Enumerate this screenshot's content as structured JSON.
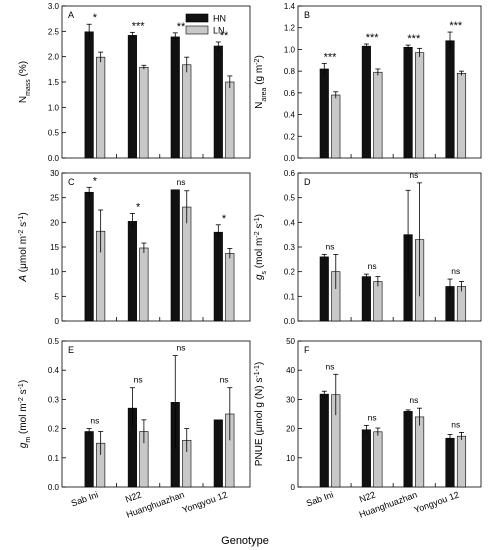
{
  "figure": {
    "xlabel": "Genotype",
    "categories": [
      "Sab Ini",
      "N22",
      "Huanghuazhan",
      "Yongyou 12"
    ],
    "legend": {
      "placement": "top-right",
      "series": [
        "HN",
        "LN"
      ]
    },
    "colors": {
      "HN": "#111111",
      "LN": "#c8c8c8",
      "axis": "#000000"
    }
  },
  "chart_data": [
    {
      "type": "bar",
      "panel": "A",
      "ylabel": "N",
      "ylabel_sub": "mass",
      "ylabel_rest": " (%)",
      "ylim": [
        0,
        3.0
      ],
      "yticks": [
        "0.0",
        "0.5",
        "1.0",
        "1.5",
        "2.0",
        "2.5",
        "3.0"
      ],
      "categories": [
        "Sab Ini",
        "N22",
        "Huanghuazhan",
        "Yongyou 12"
      ],
      "series": [
        {
          "name": "HN",
          "values": [
            2.49,
            2.42,
            2.39,
            2.21
          ],
          "errors": [
            0.15,
            0.06,
            0.08,
            0.08
          ]
        },
        {
          "name": "LN",
          "values": [
            1.99,
            1.79,
            1.84,
            1.5
          ],
          "errors": [
            0.1,
            0.04,
            0.15,
            0.12
          ]
        }
      ],
      "significance": [
        "*",
        "***",
        "**",
        "**"
      ],
      "legend": true
    },
    {
      "type": "bar",
      "panel": "B",
      "ylabel": "N",
      "ylabel_sub": "area",
      "ylabel_rest": " (g m",
      "ylabel_sup": "-2",
      "ylabel_end": ")",
      "ylim": [
        0,
        1.4
      ],
      "yticks": [
        "0.0",
        "0.2",
        "0.4",
        "0.6",
        "0.8",
        "1.0",
        "1.2",
        "1.4"
      ],
      "categories": [
        "Sab Ini",
        "N22",
        "Huanghuazhan",
        "Yongyou 12"
      ],
      "series": [
        {
          "name": "HN",
          "values": [
            0.82,
            1.03,
            1.02,
            1.08
          ],
          "errors": [
            0.05,
            0.02,
            0.02,
            0.08
          ]
        },
        {
          "name": "LN",
          "values": [
            0.58,
            0.79,
            0.97,
            0.78
          ],
          "errors": [
            0.03,
            0.03,
            0.04,
            0.02
          ]
        }
      ],
      "significance": [
        "***",
        "***",
        "***",
        "***"
      ]
    },
    {
      "type": "bar",
      "panel": "C",
      "ylabel": "A",
      "ylabel_rest": " (μmol m",
      "ylabel_sup": "-2",
      "ylabel_mid": " s",
      "ylabel_sup2": "-1",
      "ylabel_end": ")",
      "ylabel_italic": true,
      "ylim": [
        0,
        30
      ],
      "yticks": [
        "0",
        "5",
        "10",
        "15",
        "20",
        "25",
        "30"
      ],
      "categories": [
        "Sab Ini",
        "N22",
        "Huanghuazhan",
        "Yongyou 12"
      ],
      "series": [
        {
          "name": "HN",
          "values": [
            26.1,
            20.2,
            26.6,
            18.0
          ],
          "errors": [
            1.0,
            1.6,
            0.0,
            1.5
          ]
        },
        {
          "name": "LN",
          "values": [
            18.2,
            14.8,
            23.1,
            13.7
          ],
          "errors": [
            4.3,
            1.0,
            3.3,
            1.0
          ]
        }
      ],
      "significance": [
        "*",
        "*",
        "ns",
        "*"
      ]
    },
    {
      "type": "bar",
      "panel": "D",
      "ylabel": "g",
      "ylabel_sub": "s",
      "ylabel_rest": " (mol m",
      "ylabel_sup": "-2",
      "ylabel_mid": " s",
      "ylabel_sup2": "-1",
      "ylabel_end": ")",
      "ylabel_italic": true,
      "ylim": [
        0,
        0.6
      ],
      "yticks": [
        "0.0",
        "0.1",
        "0.2",
        "0.3",
        "0.4",
        "0.5",
        "0.6"
      ],
      "categories": [
        "Sab Ini",
        "N22",
        "Huanghuazhan",
        "Yongyou 12"
      ],
      "series": [
        {
          "name": "HN",
          "values": [
            0.26,
            0.18,
            0.35,
            0.14
          ],
          "errors": [
            0.01,
            0.01,
            0.18,
            0.03
          ]
        },
        {
          "name": "LN",
          "values": [
            0.2,
            0.16,
            0.33,
            0.14
          ],
          "errors": [
            0.07,
            0.02,
            0.23,
            0.02
          ]
        }
      ],
      "significance": [
        "ns",
        "ns",
        "ns",
        "ns"
      ]
    },
    {
      "type": "bar",
      "panel": "E",
      "ylabel": "g",
      "ylabel_sub": "m",
      "ylabel_rest": " (mol m",
      "ylabel_sup": "-2",
      "ylabel_mid": " s",
      "ylabel_sup2": "-1",
      "ylabel_end": ")",
      "ylabel_italic": true,
      "ylim": [
        0,
        0.5
      ],
      "yticks": [
        "0.0",
        "0.1",
        "0.2",
        "0.3",
        "0.4",
        "0.5"
      ],
      "categories": [
        "Sab Ini",
        "N22",
        "Huanghuazhan",
        "Yongyou 12"
      ],
      "series": [
        {
          "name": "HN",
          "values": [
            0.19,
            0.27,
            0.29,
            0.23
          ],
          "errors": [
            0.01,
            0.07,
            0.16,
            0.0
          ]
        },
        {
          "name": "LN",
          "values": [
            0.15,
            0.19,
            0.16,
            0.25
          ],
          "errors": [
            0.04,
            0.04,
            0.04,
            0.09
          ]
        }
      ],
      "significance": [
        "ns",
        "ns",
        "ns",
        "ns"
      ]
    },
    {
      "type": "bar",
      "panel": "F",
      "ylabel": "PNUE (μmol g",
      "ylabel_sup": "-1",
      "ylabel_rest": " (N) s",
      "ylabel_sup2": "-1",
      "ylabel_end": ")",
      "ylim": [
        0,
        50
      ],
      "yticks": [
        "0",
        "10",
        "20",
        "30",
        "40",
        "50"
      ],
      "categories": [
        "Sab Ini",
        "N22",
        "Huanghuazhan",
        "Yongyou 12"
      ],
      "series": [
        {
          "name": "HN",
          "values": [
            31.8,
            19.6,
            25.9,
            16.7
          ],
          "errors": [
            1.0,
            1.5,
            0.5,
            1.3
          ]
        },
        {
          "name": "LN",
          "values": [
            31.6,
            18.9,
            24.0,
            17.4
          ],
          "errors": [
            7.0,
            1.3,
            3.0,
            1.3
          ]
        }
      ],
      "significance": [
        "ns",
        "ns",
        "ns",
        "ns"
      ]
    }
  ]
}
